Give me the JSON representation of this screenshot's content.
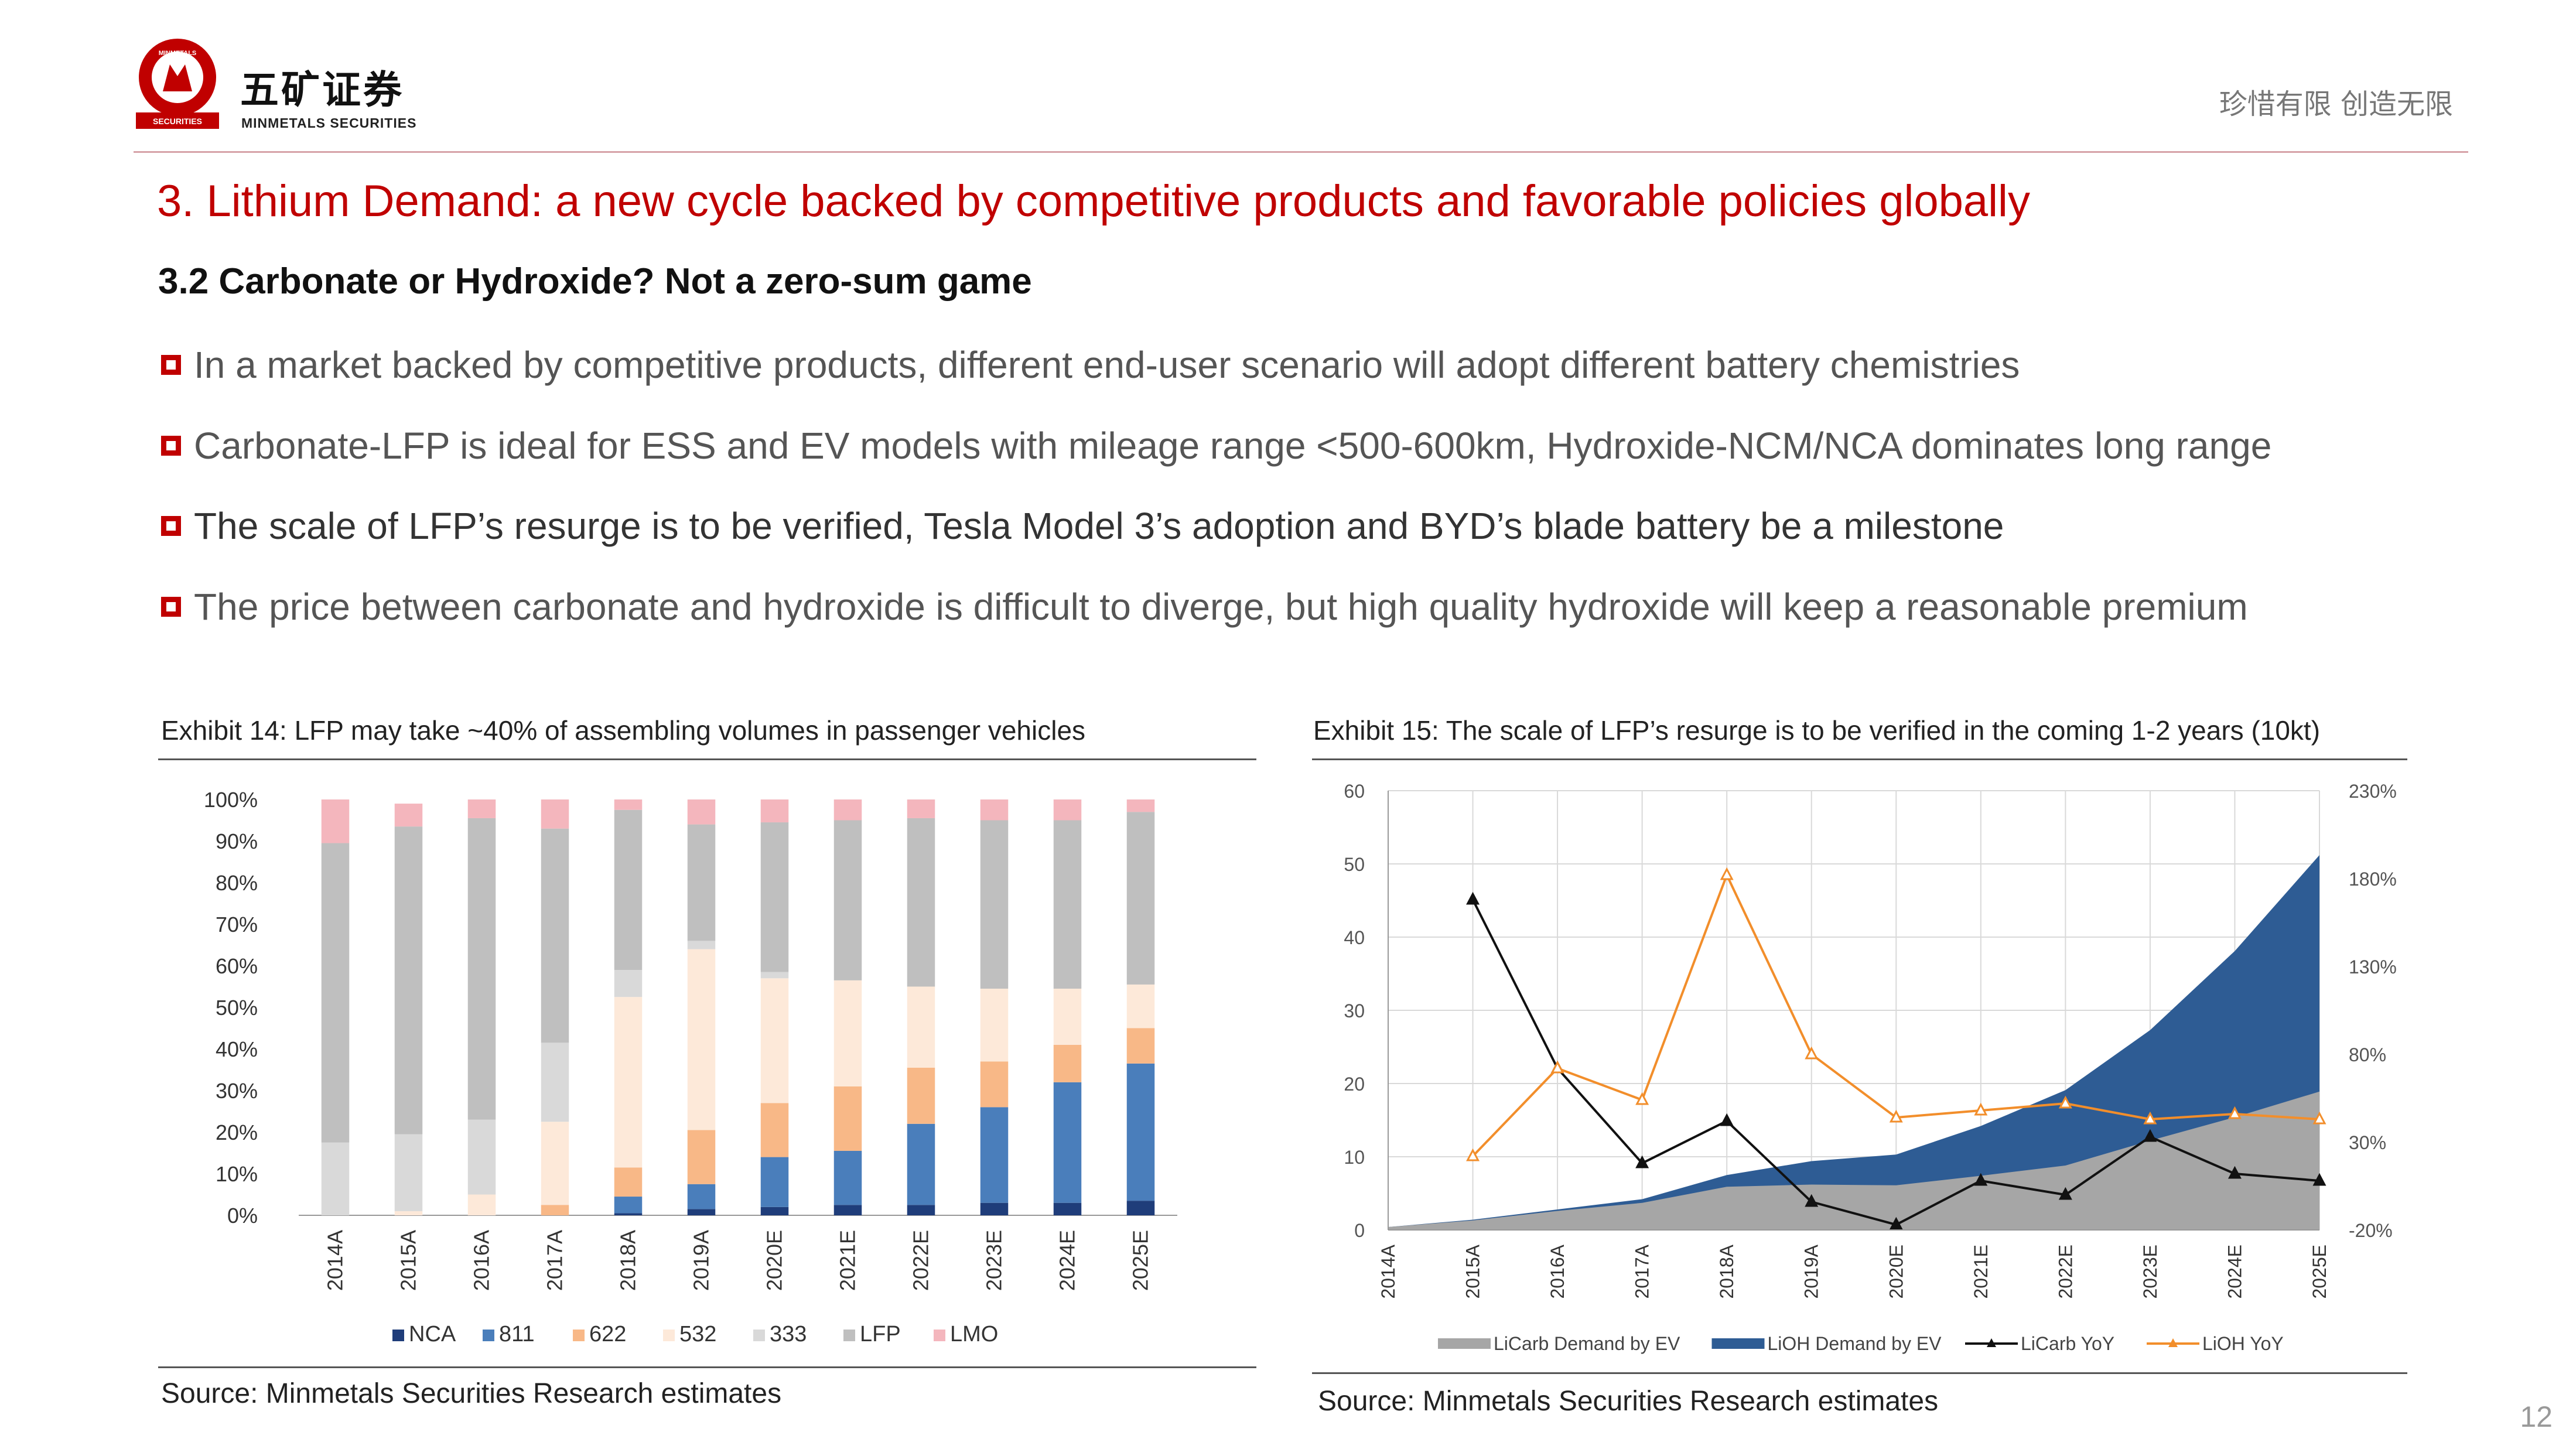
{
  "brand": {
    "logo_ring_text": "MINMETALS",
    "logo_base_text": "SECURITIES",
    "name_cn": "五矿证券",
    "name_en": "MINMETALS SECURITIES",
    "slogan": "珍惜有限  创造无限",
    "colors": {
      "red": "#c00000",
      "rule": "#d7a3a8"
    }
  },
  "title": "3. Lithium Demand: a new cycle backed by competitive products and favorable policies globally",
  "subtitle": "3.2 Carbonate or Hydroxide?  Not a zero-sum game",
  "bullets": [
    "In a market backed by competitive products, different end-user scenario will adopt different battery chemistries",
    "Carbonate-LFP is ideal for ESS and EV models with mileage range <500-600km, Hydroxide-NCM/NCA dominates long range",
    "The scale of LFP’s resurge is to be verified, Tesla Model 3’s adoption and BYD’s blade battery be a milestone",
    "The price between carbonate and hydroxide is difficult to diverge, but high quality hydroxide will keep a reasonable premium"
  ],
  "exhibit14": {
    "title": "Exhibit 14: LFP may take ~40% of assembling volumes in passenger vehicles",
    "source": "Source: Minmetals Securities Research estimates"
  },
  "exhibit15": {
    "title": "Exhibit 15: The scale of LFP’s resurge is to be verified in the coming 1-2 years (10kt)",
    "source": "Source: Minmetals Securities Research estimates"
  },
  "page_number": "12",
  "chart_data": [
    {
      "type": "bar",
      "stacked": true,
      "percent_stacked": true,
      "categories": [
        "2014A",
        "2015A",
        "2016A",
        "2017A",
        "2018A",
        "2019A",
        "2020E",
        "2021E",
        "2022E",
        "2023E",
        "2024E",
        "2025E"
      ],
      "ylim": [
        0,
        100
      ],
      "yticks": [
        "0%",
        "10%",
        "20%",
        "30%",
        "40%",
        "50%",
        "60%",
        "70%",
        "80%",
        "90%",
        "100%"
      ],
      "legend_position": "bottom",
      "series": [
        {
          "name": "NCA",
          "color": "#1f3d7a",
          "values": [
            0,
            0,
            0,
            0,
            0.5,
            1.5,
            2,
            2.5,
            2.5,
            3,
            3,
            3.5
          ]
        },
        {
          "name": "811",
          "color": "#4a7ebb",
          "values": [
            0,
            0,
            0,
            0,
            4,
            6,
            12,
            13,
            19.5,
            23,
            29,
            33
          ]
        },
        {
          "name": "622",
          "color": "#f8b887",
          "values": [
            0,
            0,
            0,
            2.5,
            7,
            13,
            13,
            15.5,
            13.5,
            11,
            9,
            8.5
          ]
        },
        {
          "name": "532",
          "color": "#fde9d9",
          "values": [
            0,
            1,
            5,
            20,
            41,
            43.5,
            30,
            25.5,
            19.5,
            17.5,
            13.5,
            10.5
          ]
        },
        {
          "name": "333",
          "color": "#d9d9d9",
          "values": [
            17.5,
            18.5,
            18,
            19,
            6.5,
            2,
            1.5,
            0,
            0,
            0,
            0,
            0
          ]
        },
        {
          "name": "LFP",
          "color": "#bfbfbf",
          "values": [
            72,
            74,
            72.5,
            51.5,
            38.5,
            28,
            36,
            38.5,
            40.5,
            40.5,
            40.5,
            41.5
          ]
        },
        {
          "name": "LMO",
          "color": "#f4b6bd",
          "values": [
            10.5,
            5.5,
            4.5,
            7,
            2.5,
            6,
            5.5,
            5,
            4.5,
            5,
            5,
            3
          ]
        }
      ]
    },
    {
      "type": "area",
      "x": [
        "2014A",
        "2015A",
        "2016A",
        "2017A",
        "2018A",
        "2019A",
        "2020E",
        "2021E",
        "2022E",
        "2023E",
        "2024E",
        "2025E"
      ],
      "ylim_left": [
        0,
        60
      ],
      "yticks_left": [
        "0",
        "10",
        "20",
        "30",
        "40",
        "50",
        "60"
      ],
      "ylim_right": [
        -20,
        230
      ],
      "yticks_right": [
        "-20%",
        "30%",
        "80%",
        "130%",
        "180%",
        "230%"
      ],
      "grid": true,
      "legend_position": "bottom",
      "series": [
        {
          "name": "LiCarb Demand by EV",
          "type": "area",
          "axis": "left",
          "color": "#a6a6a6",
          "values": [
            0.4,
            1.3,
            2.6,
            3.7,
            5.9,
            6.2,
            6.1,
            7.4,
            8.8,
            12.2,
            15.4,
            18.9
          ]
        },
        {
          "name": "LiOH Demand by EV",
          "type": "area",
          "axis": "left",
          "color": "#2e5c94",
          "values": [
            0.4,
            1.4,
            2.8,
            4.2,
            7.5,
            9.4,
            10.3,
            14.2,
            19.1,
            27.3,
            38.1,
            51.2
          ]
        },
        {
          "name": "LiCarb YoY",
          "type": "line",
          "axis": "right",
          "color": "#111111",
          "values": [
            null,
            168,
            72,
            18,
            42,
            -4,
            -17,
            8,
            0,
            33,
            12,
            8
          ]
        },
        {
          "name": "LiOH YoY",
          "type": "line",
          "axis": "right",
          "color": "#f28e2b",
          "values": [
            null,
            22,
            72,
            54,
            182,
            80,
            44,
            48,
            52,
            43,
            46,
            43
          ]
        }
      ]
    }
  ]
}
